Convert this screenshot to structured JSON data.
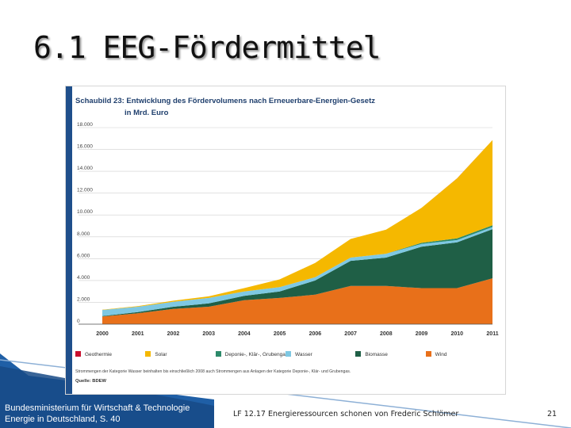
{
  "slide": {
    "title": "6.1 EEG-Fördermittel",
    "footer_left_line1": "Bundesministerium für Wirtschaft & Technologie",
    "footer_left_line2": "Energie in Deutschland, S. 40",
    "footer_center": "LF 12.17 Energieressourcen schonen von Frederic Schlömer",
    "page_number": "21"
  },
  "figure": {
    "title": "Schaubild 23: Entwicklung des Fördervolumens nach Erneuerbare-Energien-Gesetz",
    "subtitle": "in Mrd. Euro",
    "note": "Strommengen der Kategorie Wasser beinhalten bis einschließlich 2008 auch Strommengen aus Anlagen der Kategorie Deponie-, Klär- und Grubengas.",
    "source": "Quelle: BDEW"
  },
  "chart_data": {
    "type": "area",
    "stacked": true,
    "title": "Schaubild 23: Entwicklung des Fördervolumens nach Erneuerbare-Energien-Gesetz",
    "subtitle": "in Mrd. Euro",
    "x": [
      2000,
      2001,
      2002,
      2003,
      2004,
      2005,
      2006,
      2007,
      2008,
      2009,
      2010,
      2011
    ],
    "x_tick_labels": [
      "2000",
      "2001",
      "2002",
      "2003",
      "2004",
      "2005",
      "2006",
      "2007",
      "2008",
      "2009",
      "2010",
      "2011"
    ],
    "ylim": [
      0,
      18000
    ],
    "y_ticks": [
      0,
      2000,
      4000,
      6000,
      8000,
      10000,
      12000,
      14000,
      16000,
      18000
    ],
    "y_tick_labels": [
      "0",
      "2.000",
      "4.000",
      "6.000",
      "8.000",
      "10.000",
      "12.000",
      "14.000",
      "16.000",
      "18.000"
    ],
    "grid": true,
    "legend_position": "bottom",
    "series": [
      {
        "name": "Wind",
        "color": "#e8701a",
        "values": [
          700,
          1000,
          1400,
          1600,
          2200,
          2400,
          2700,
          3500,
          3500,
          3300,
          3300,
          4200
        ]
      },
      {
        "name": "Biomasse",
        "color": "#1f5f46",
        "values": [
          50,
          100,
          200,
          300,
          400,
          600,
          1300,
          2300,
          2600,
          3800,
          4200,
          4500
        ]
      },
      {
        "name": "Wasser",
        "color": "#7ec8e3",
        "values": [
          550,
          500,
          450,
          500,
          400,
          400,
          300,
          300,
          350,
          250,
          200,
          200
        ]
      },
      {
        "name": "Deponie-, Klär-, Grubengas",
        "color": "#2c8a6a",
        "values": [
          0,
          0,
          0,
          0,
          0,
          0,
          0,
          0,
          0,
          100,
          150,
          150
        ]
      },
      {
        "name": "Solar",
        "color": "#f5b800",
        "values": [
          20,
          50,
          100,
          150,
          300,
          700,
          1300,
          1700,
          2200,
          3200,
          5500,
          7800
        ]
      },
      {
        "name": "Geothermie",
        "color": "#c8102e",
        "values": [
          0,
          0,
          0,
          0,
          0,
          0,
          0,
          0,
          0,
          0,
          5,
          10
        ]
      }
    ],
    "legend_order": [
      "Geothermie",
      "Solar",
      "Deponie-, Klär-, Grubengas",
      "Wasser",
      "Biomasse",
      "Wind"
    ]
  }
}
